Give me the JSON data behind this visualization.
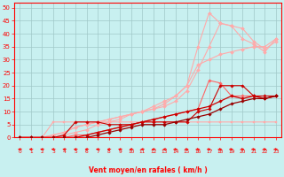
{
  "xlabel": "Vent moyen/en rafales ( km/h )",
  "xlim": [
    -0.5,
    23.5
  ],
  "ylim": [
    0,
    52
  ],
  "yticks": [
    0,
    5,
    10,
    15,
    20,
    25,
    30,
    35,
    40,
    45,
    50
  ],
  "xticks": [
    0,
    1,
    2,
    3,
    4,
    5,
    6,
    7,
    8,
    9,
    10,
    11,
    12,
    13,
    14,
    15,
    16,
    17,
    18,
    19,
    20,
    21,
    22,
    23
  ],
  "background_color": "#c8f0f0",
  "grid_color": "#a0c8c8",
  "lines": [
    {
      "color": "#ffaaaa",
      "linewidth": 0.8,
      "marker": "s",
      "markersize": 1.5,
      "x": [
        0,
        1,
        2,
        3,
        4,
        5,
        6,
        7,
        8,
        9,
        10,
        11,
        12,
        13,
        14,
        15,
        16,
        17,
        18,
        19,
        20,
        21,
        22,
        23
      ],
      "y": [
        0,
        0,
        0,
        6,
        6,
        6,
        6,
        6,
        6,
        6,
        6,
        6,
        6,
        6,
        6,
        6,
        6,
        6,
        6,
        6,
        6,
        6,
        6,
        6
      ]
    },
    {
      "color": "#ffaaaa",
      "linewidth": 0.8,
      "marker": "D",
      "markersize": 2,
      "x": [
        0,
        1,
        2,
        3,
        4,
        5,
        6,
        7,
        8,
        9,
        10,
        11,
        12,
        13,
        14,
        15,
        16,
        17,
        18,
        19,
        20,
        21,
        22,
        23
      ],
      "y": [
        0,
        0,
        0,
        1,
        2,
        4,
        5,
        6,
        7,
        8,
        9,
        10,
        11,
        13,
        16,
        20,
        35,
        48,
        44,
        43,
        38,
        36,
        33,
        38
      ]
    },
    {
      "color": "#ffaaaa",
      "linewidth": 0.8,
      "marker": "D",
      "markersize": 2,
      "x": [
        0,
        1,
        2,
        3,
        4,
        5,
        6,
        7,
        8,
        9,
        10,
        11,
        12,
        13,
        14,
        15,
        16,
        17,
        18,
        19,
        20,
        21,
        22,
        23
      ],
      "y": [
        0,
        0,
        0,
        1,
        2,
        4,
        5,
        6,
        7,
        8,
        9,
        10,
        11,
        12,
        14,
        18,
        26,
        35,
        44,
        43,
        42,
        37,
        34,
        37
      ]
    },
    {
      "color": "#ffaaaa",
      "linewidth": 0.8,
      "marker": "D",
      "markersize": 2,
      "x": [
        0,
        1,
        2,
        3,
        4,
        5,
        6,
        7,
        8,
        9,
        10,
        11,
        12,
        13,
        14,
        15,
        16,
        17,
        18,
        19,
        20,
        21,
        22,
        23
      ],
      "y": [
        0,
        0,
        0,
        0,
        1,
        2,
        3,
        5,
        6,
        7,
        9,
        10,
        12,
        14,
        16,
        20,
        28,
        30,
        32,
        33,
        34,
        35,
        35,
        38
      ]
    },
    {
      "color": "#ff6666",
      "linewidth": 0.8,
      "marker": "D",
      "markersize": 1.8,
      "x": [
        0,
        1,
        2,
        3,
        4,
        5,
        6,
        7,
        8,
        9,
        10,
        11,
        12,
        13,
        14,
        15,
        16,
        17,
        18,
        19,
        20,
        21,
        22,
        23
      ],
      "y": [
        0,
        0,
        0,
        0,
        0,
        1,
        1,
        2,
        3,
        4,
        5,
        6,
        7,
        8,
        9,
        10,
        11,
        22,
        21,
        16,
        16,
        16,
        15,
        16
      ]
    },
    {
      "color": "#cc0000",
      "linewidth": 0.9,
      "marker": "D",
      "markersize": 1.8,
      "x": [
        0,
        1,
        2,
        3,
        4,
        5,
        6,
        7,
        8,
        9,
        10,
        11,
        12,
        13,
        14,
        15,
        16,
        17,
        18,
        19,
        20,
        21,
        22,
        23
      ],
      "y": [
        0,
        0,
        0,
        0,
        0,
        0,
        1,
        2,
        3,
        4,
        5,
        6,
        7,
        8,
        9,
        10,
        11,
        12,
        14,
        16,
        15,
        16,
        15,
        16
      ]
    },
    {
      "color": "#cc0000",
      "linewidth": 0.8,
      "marker": "D",
      "markersize": 1.8,
      "x": [
        0,
        1,
        2,
        3,
        4,
        5,
        6,
        7,
        8,
        9,
        10,
        11,
        12,
        13,
        14,
        15,
        16,
        17,
        18,
        19,
        20,
        21,
        22,
        23
      ],
      "y": [
        0,
        0,
        0,
        0,
        1,
        6,
        6,
        6,
        5,
        5,
        5,
        6,
        6,
        6,
        6,
        6,
        10,
        11,
        20,
        20,
        20,
        16,
        16,
        16
      ]
    },
    {
      "color": "#990000",
      "linewidth": 0.9,
      "marker": "D",
      "markersize": 1.8,
      "x": [
        0,
        1,
        2,
        3,
        4,
        5,
        6,
        7,
        8,
        9,
        10,
        11,
        12,
        13,
        14,
        15,
        16,
        17,
        18,
        19,
        20,
        21,
        22,
        23
      ],
      "y": [
        0,
        0,
        0,
        0,
        0,
        0,
        0,
        1,
        2,
        3,
        4,
        5,
        5,
        5,
        6,
        7,
        8,
        9,
        11,
        13,
        14,
        15,
        15,
        16
      ]
    }
  ],
  "arrows": {
    "x_positions": [
      0,
      1,
      2,
      3,
      4,
      5,
      6,
      7,
      8,
      9,
      10,
      11,
      12,
      13,
      14,
      15,
      16,
      17,
      18,
      19,
      20,
      21,
      22,
      23
    ],
    "directions": [
      "left",
      "left",
      "left",
      "left",
      "left",
      "left",
      "left",
      "left",
      "left",
      "left",
      "left",
      "left",
      "left",
      "left",
      "right",
      "right",
      "right",
      "right",
      "right",
      "right",
      "right",
      "right",
      "right",
      "right"
    ]
  }
}
